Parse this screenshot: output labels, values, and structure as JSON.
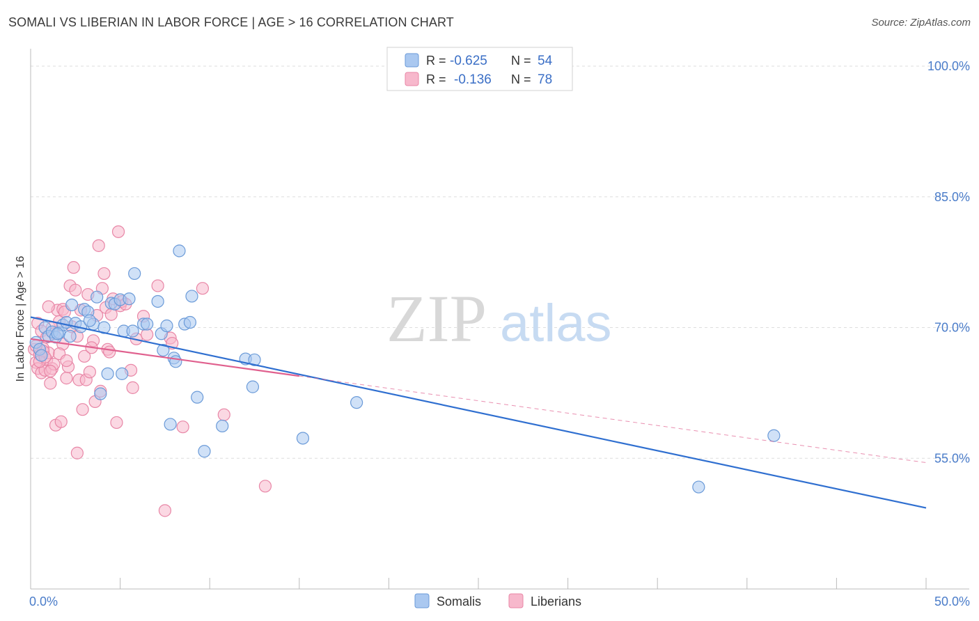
{
  "title": "SOMALI VS LIBERIAN IN LABOR FORCE | AGE > 16 CORRELATION CHART",
  "source": "Source: ZipAtlas.com",
  "colors": {
    "somali_fill": "#aac8f0",
    "somali_stroke": "#6a9ad8",
    "somali_line": "#2f6fd0",
    "liberian_fill": "#f7b8cc",
    "liberian_stroke": "#e886a6",
    "liberian_line": "#e0608e",
    "axis_label": "#4a7cc9",
    "grid": "#dddddd"
  },
  "legend": {
    "rows": [
      {
        "r_label": "R =",
        "r_value": "-0.625",
        "n_label": "N =",
        "n_value": "54"
      },
      {
        "r_label": "R =",
        "r_value": "-0.136",
        "n_label": "N =",
        "n_value": "78"
      }
    ]
  },
  "bottom_legend": [
    "Somalis",
    "Liberians"
  ],
  "watermark": {
    "zip": "ZIP",
    "atlas": "atlas"
  },
  "chart_data": {
    "type": "scatter",
    "title": "SOMALI VS LIBERIAN IN LABOR FORCE | AGE > 16 CORRELATION CHART",
    "xlabel": "",
    "ylabel": "In Labor Force | Age > 16",
    "xlim": [
      0,
      50
    ],
    "ylim": [
      40,
      102
    ],
    "x_tick_labels": [
      "0.0%",
      "50.0%"
    ],
    "y_ticks": [
      55,
      70,
      85,
      100
    ],
    "y_tick_labels": [
      "55.0%",
      "70.0%",
      "85.0%",
      "100.0%"
    ],
    "series": [
      {
        "name": "Somalis",
        "r": -0.625,
        "n": 54,
        "trend": {
          "x": [
            0,
            50
          ],
          "y": [
            71.2,
            49.3
          ],
          "dashed_from": null
        },
        "points": [
          [
            0.3,
            68.3
          ],
          [
            0.5,
            67.5
          ],
          [
            0.6,
            66.8
          ],
          [
            0.8,
            70.0
          ],
          [
            1.0,
            69.0
          ],
          [
            1.2,
            69.5
          ],
          [
            1.4,
            68.9
          ],
          [
            1.6,
            69.4
          ],
          [
            1.8,
            70.3
          ],
          [
            2.0,
            70.6
          ],
          [
            2.2,
            69.0
          ],
          [
            2.3,
            72.6
          ],
          [
            2.5,
            70.5
          ],
          [
            2.8,
            70.1
          ],
          [
            3.0,
            72.1
          ],
          [
            3.2,
            71.8
          ],
          [
            3.5,
            70.4
          ],
          [
            3.7,
            73.5
          ],
          [
            3.9,
            62.4
          ],
          [
            4.1,
            70.0
          ],
          [
            4.3,
            64.7
          ],
          [
            4.5,
            72.8
          ],
          [
            4.7,
            72.7
          ],
          [
            5.0,
            73.2
          ],
          [
            5.1,
            64.7
          ],
          [
            5.2,
            69.6
          ],
          [
            5.5,
            73.3
          ],
          [
            5.7,
            69.6
          ],
          [
            5.8,
            76.2
          ],
          [
            6.3,
            70.4
          ],
          [
            6.5,
            70.4
          ],
          [
            7.1,
            73.0
          ],
          [
            7.3,
            69.3
          ],
          [
            7.4,
            67.4
          ],
          [
            7.6,
            70.2
          ],
          [
            7.8,
            58.9
          ],
          [
            8.0,
            66.5
          ],
          [
            8.1,
            66.1
          ],
          [
            8.3,
            78.8
          ],
          [
            8.6,
            70.4
          ],
          [
            8.9,
            70.6
          ],
          [
            9.0,
            73.6
          ],
          [
            9.3,
            62.0
          ],
          [
            9.7,
            55.8
          ],
          [
            10.7,
            58.7
          ],
          [
            12.0,
            66.4
          ],
          [
            12.4,
            63.2
          ],
          [
            12.5,
            66.3
          ],
          [
            15.2,
            57.3
          ],
          [
            18.2,
            61.4
          ],
          [
            37.3,
            51.7
          ],
          [
            41.5,
            57.6
          ],
          [
            1.5,
            69.3
          ],
          [
            3.3,
            70.8
          ]
        ]
      },
      {
        "name": "Liberians",
        "r": -0.136,
        "n": 78,
        "trend": {
          "x": [
            0,
            50
          ],
          "y": [
            68.7,
            54.5
          ],
          "dashed_from": 15.0
        },
        "points": [
          [
            0.2,
            67.5
          ],
          [
            0.3,
            66.0
          ],
          [
            0.4,
            65.3
          ],
          [
            0.5,
            66.9
          ],
          [
            0.6,
            64.8
          ],
          [
            0.7,
            67.6
          ],
          [
            0.8,
            65.1
          ],
          [
            0.9,
            66.3
          ],
          [
            1.0,
            67.1
          ],
          [
            1.1,
            63.6
          ],
          [
            1.2,
            65.3
          ],
          [
            1.3,
            65.8
          ],
          [
            1.4,
            58.8
          ],
          [
            1.5,
            72.0
          ],
          [
            1.6,
            70.7
          ],
          [
            1.7,
            59.2
          ],
          [
            1.8,
            72.1
          ],
          [
            1.9,
            71.8
          ],
          [
            2.0,
            64.2
          ],
          [
            2.2,
            74.8
          ],
          [
            2.3,
            70.1
          ],
          [
            2.4,
            76.9
          ],
          [
            2.5,
            74.3
          ],
          [
            2.6,
            55.6
          ],
          [
            2.7,
            64.0
          ],
          [
            2.8,
            72.0
          ],
          [
            2.9,
            60.6
          ],
          [
            3.0,
            66.7
          ],
          [
            3.1,
            64.0
          ],
          [
            3.2,
            73.8
          ],
          [
            3.3,
            64.9
          ],
          [
            3.5,
            68.5
          ],
          [
            3.6,
            61.5
          ],
          [
            3.7,
            71.4
          ],
          [
            3.8,
            79.4
          ],
          [
            3.9,
            62.7
          ],
          [
            4.0,
            74.5
          ],
          [
            4.1,
            76.2
          ],
          [
            4.2,
            72.3
          ],
          [
            4.3,
            67.5
          ],
          [
            4.4,
            67.2
          ],
          [
            4.5,
            71.5
          ],
          [
            4.6,
            73.3
          ],
          [
            4.8,
            59.1
          ],
          [
            4.9,
            81.0
          ],
          [
            5.0,
            72.5
          ],
          [
            5.1,
            73.0
          ],
          [
            5.3,
            72.7
          ],
          [
            5.6,
            65.1
          ],
          [
            5.7,
            63.1
          ],
          [
            5.9,
            68.7
          ],
          [
            6.3,
            71.3
          ],
          [
            6.5,
            69.2
          ],
          [
            7.1,
            74.8
          ],
          [
            7.5,
            49.0
          ],
          [
            7.8,
            68.8
          ],
          [
            7.9,
            68.2
          ],
          [
            8.5,
            58.6
          ],
          [
            9.6,
            74.5
          ],
          [
            10.8,
            60.0
          ],
          [
            13.1,
            51.8
          ],
          [
            0.4,
            70.5
          ],
          [
            0.6,
            69.6
          ],
          [
            0.9,
            68.9
          ],
          [
            1.0,
            72.4
          ],
          [
            1.2,
            70.0
          ],
          [
            0.5,
            66.1
          ],
          [
            0.7,
            67.3
          ],
          [
            1.1,
            65.0
          ],
          [
            1.8,
            68.1
          ],
          [
            2.1,
            65.5
          ],
          [
            2.6,
            69.0
          ],
          [
            3.4,
            67.7
          ],
          [
            1.3,
            69.3
          ],
          [
            0.3,
            67.9
          ],
          [
            0.8,
            66.6
          ],
          [
            1.6,
            67.0
          ],
          [
            2.0,
            66.2
          ]
        ]
      }
    ]
  }
}
